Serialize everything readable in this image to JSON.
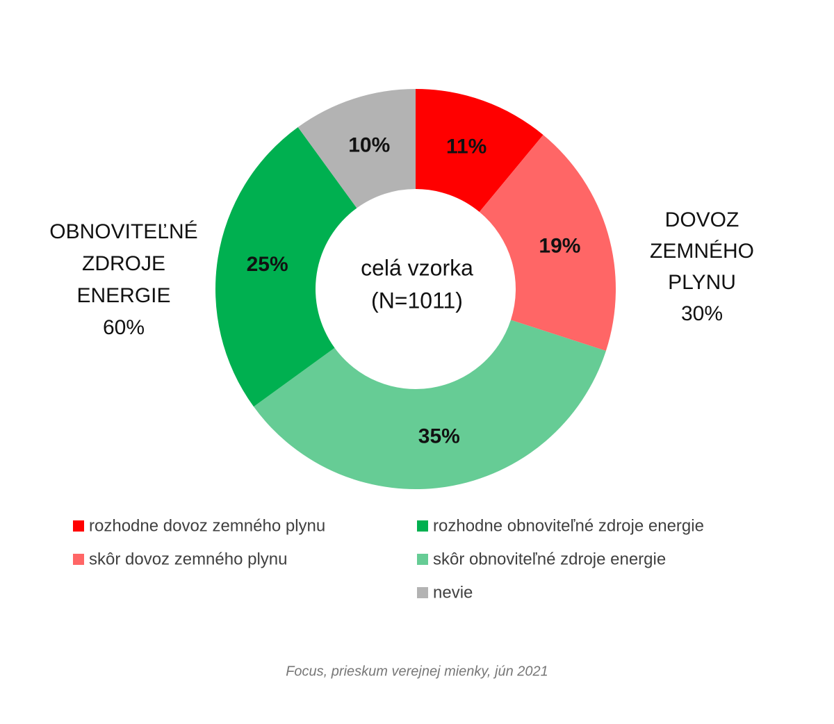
{
  "chart_data": {
    "type": "donut",
    "center_text": [
      "celá vzorka",
      "(N=1011)"
    ],
    "series": [
      {
        "name": "rozhodne dovoz zemného plynu",
        "color": "#ff0000",
        "values": [
          11
        ],
        "value_labels": [
          "11%"
        ]
      },
      {
        "name": "skôr dovoz zemného plynu",
        "color": "#ff6666",
        "values": [
          19
        ],
        "value_labels": [
          "19%"
        ]
      },
      {
        "name": "skôr obnoviteľné zdroje energie",
        "color": "#66cc95",
        "values": [
          35
        ],
        "value_labels": [
          "35%"
        ]
      },
      {
        "name": "rozhodne obnoviteľné zdroje energie",
        "color": "#00b050",
        "values": [
          25
        ],
        "value_labels": [
          "25%"
        ]
      },
      {
        "name": "nevie",
        "color": "#b3b3b3",
        "values": [
          10
        ],
        "value_labels": [
          "10%"
        ]
      }
    ],
    "annotations": [
      {
        "lines": [
          "OBNOVITEĽNÉ",
          "ZDROJE",
          "ENERGIE"
        ],
        "value": 60,
        "value_label": "60%"
      },
      {
        "lines": [
          "DOVOZ",
          "ZEMNÉHO",
          "PLYNU"
        ],
        "value": 30,
        "value_label": "30%"
      }
    ],
    "source": "Focus, prieskum verejnej mienky, jún 2021"
  }
}
